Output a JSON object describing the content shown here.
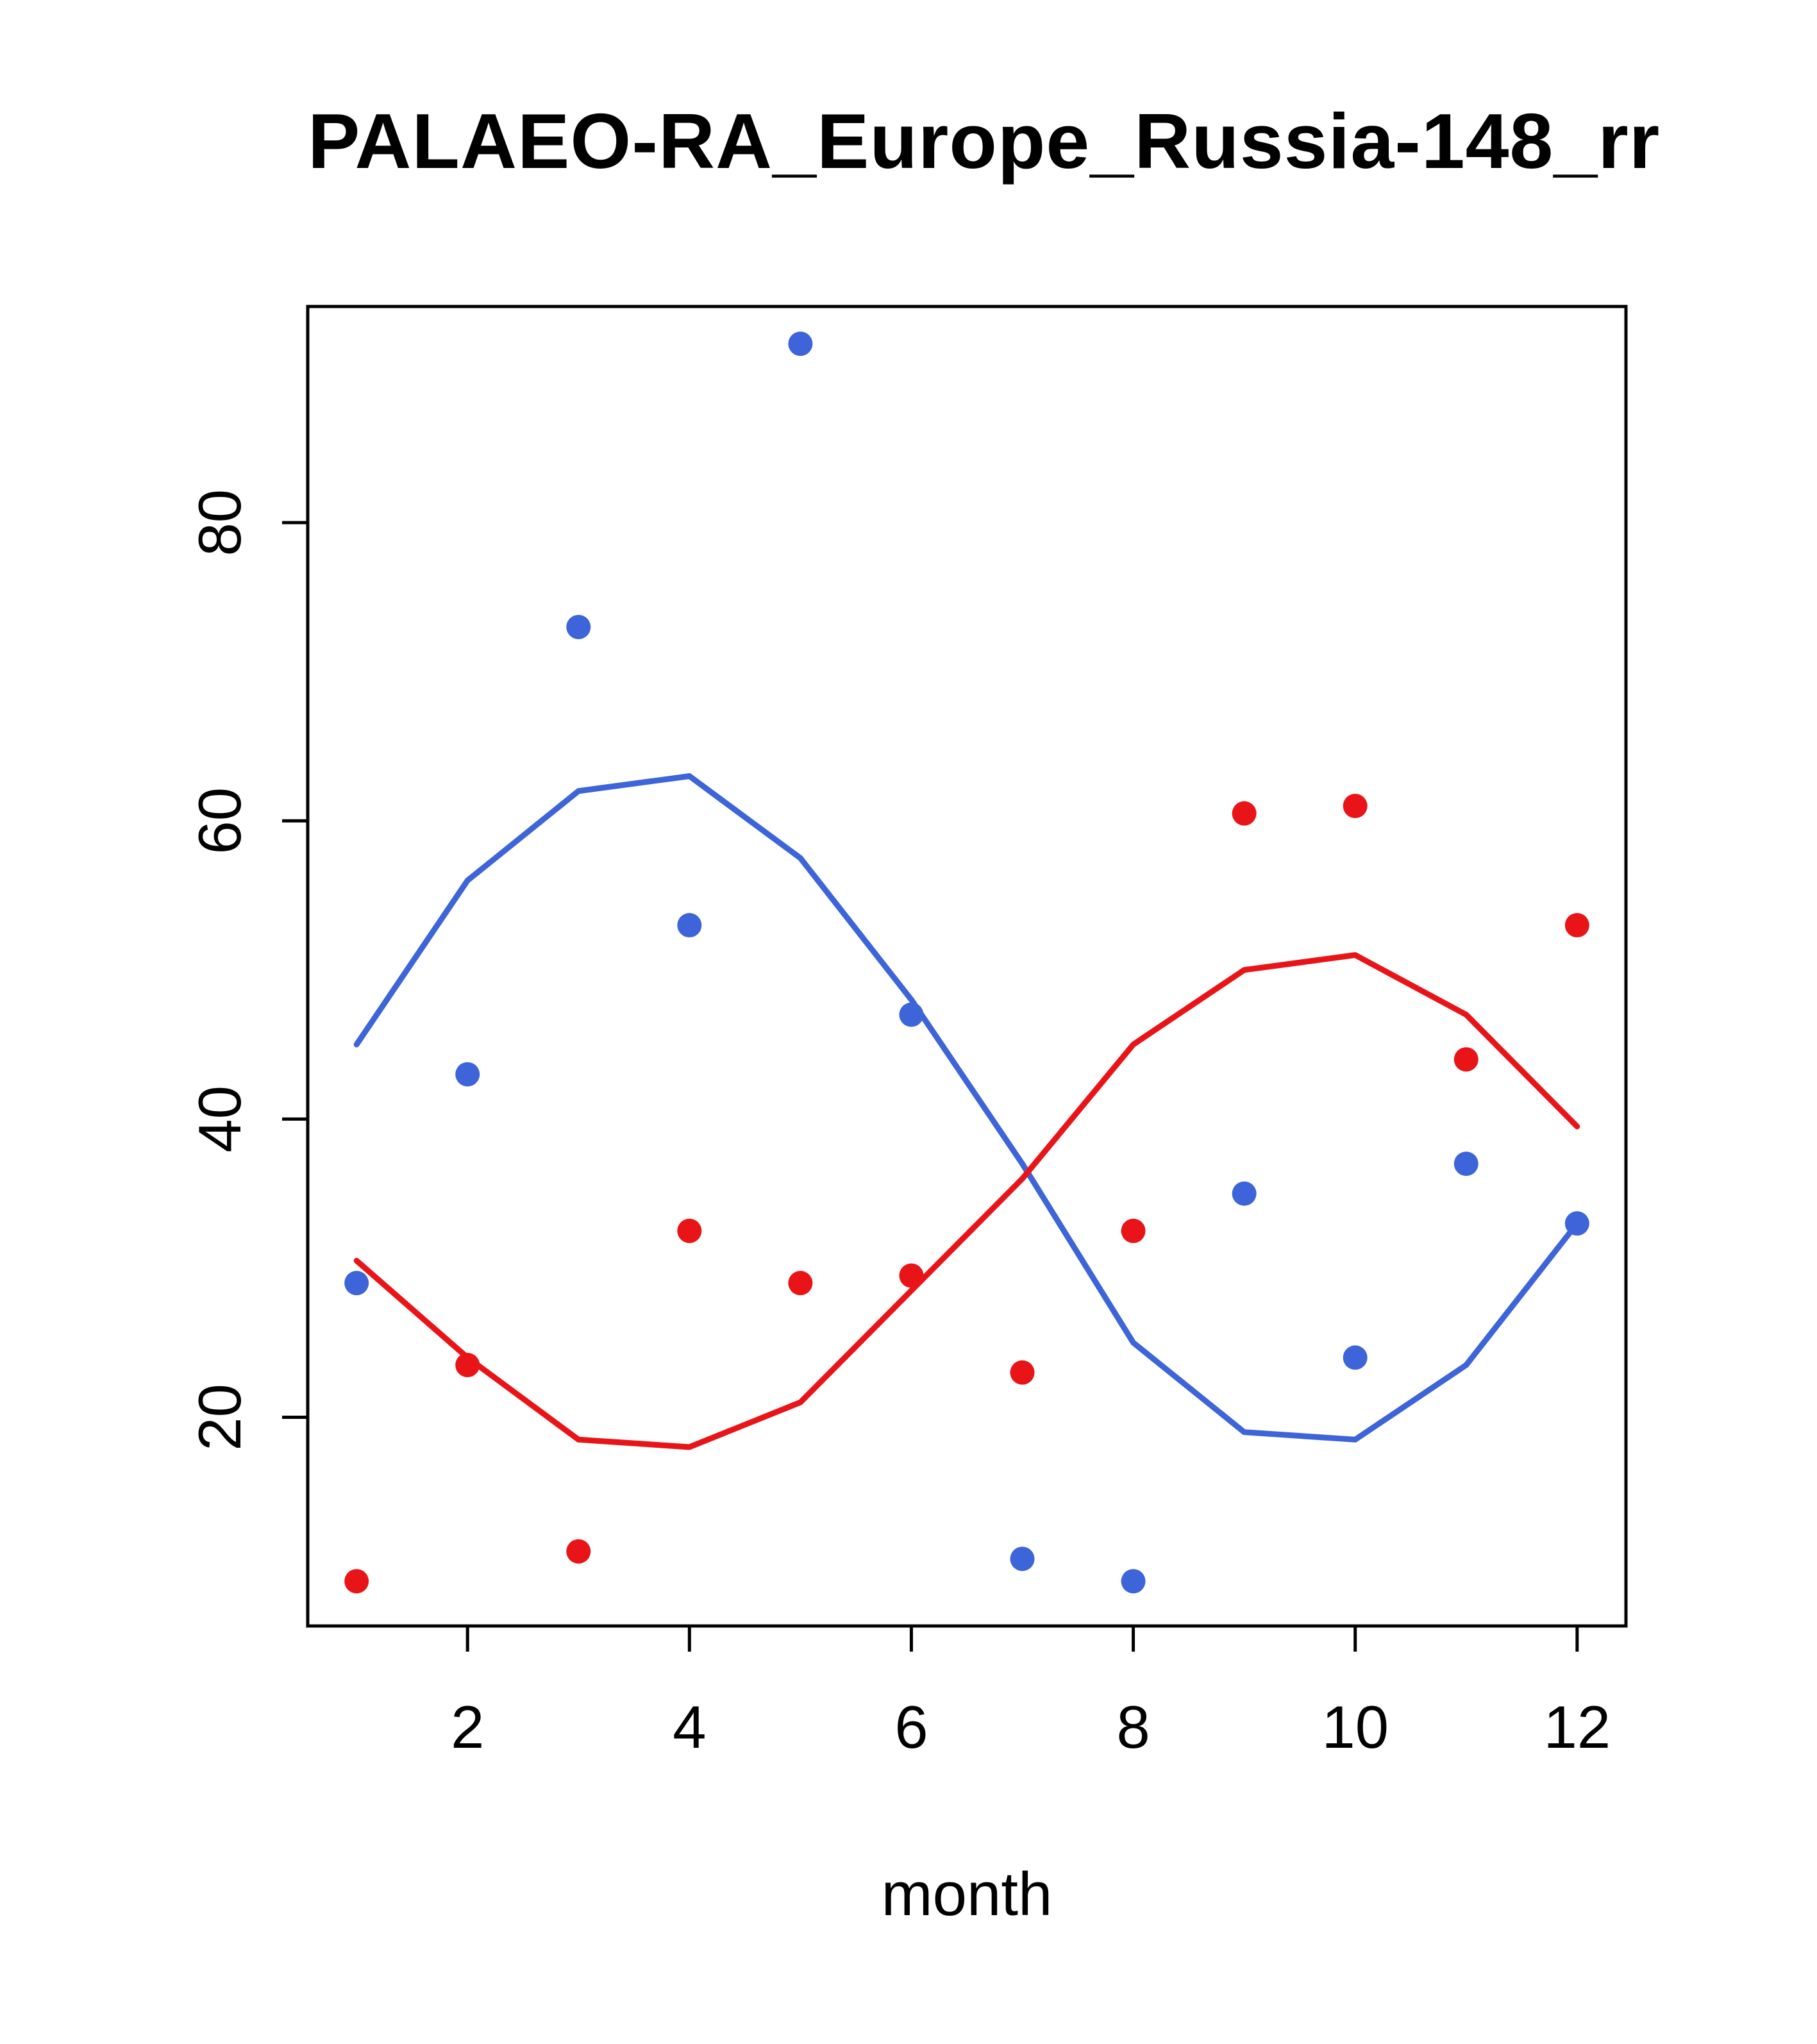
{
  "chart_data": {
    "type": "scatter",
    "title": "PALAEO-RA_Europe_Russia-148_rr",
    "xlabel": "month",
    "ylabel": "",
    "xlim": [
      0.56,
      12.44
    ],
    "ylim": [
      6.0,
      94.5
    ],
    "xticks": [
      2,
      4,
      6,
      8,
      10,
      12
    ],
    "yticks": [
      20,
      40,
      60,
      80
    ],
    "grid": false,
    "legend": "none",
    "x": [
      1,
      2,
      3,
      4,
      5,
      6,
      7,
      8,
      9,
      10,
      11,
      12
    ],
    "colors": {
      "blue": "#3D64D8",
      "red": "#E91418",
      "axis": "#000000"
    },
    "series": [
      {
        "name": "blue-smooth-line",
        "kind": "line",
        "color_key": "blue",
        "values": [
          45,
          56,
          62,
          63,
          57.5,
          48,
          37,
          25,
          19,
          18.5,
          23.5,
          33
        ]
      },
      {
        "name": "red-smooth-line",
        "kind": "line",
        "color_key": "red",
        "values": [
          30.5,
          24,
          18.5,
          18,
          21,
          28.5,
          36,
          45,
          50,
          51,
          47,
          39.5
        ]
      },
      {
        "name": "blue-points",
        "kind": "points",
        "color_key": "blue",
        "values": [
          29,
          43,
          73,
          53,
          92,
          47,
          10.5,
          9,
          35,
          24,
          37,
          33
        ]
      },
      {
        "name": "red-points",
        "kind": "points",
        "color_key": "red",
        "values": [
          9,
          23.5,
          11,
          32.5,
          29,
          29.5,
          23,
          32.5,
          60.5,
          61,
          44,
          53
        ]
      }
    ]
  },
  "layout_labels": {
    "title": "PALAEO-RA_Europe_Russia-148_rr",
    "xlabel": "month"
  }
}
